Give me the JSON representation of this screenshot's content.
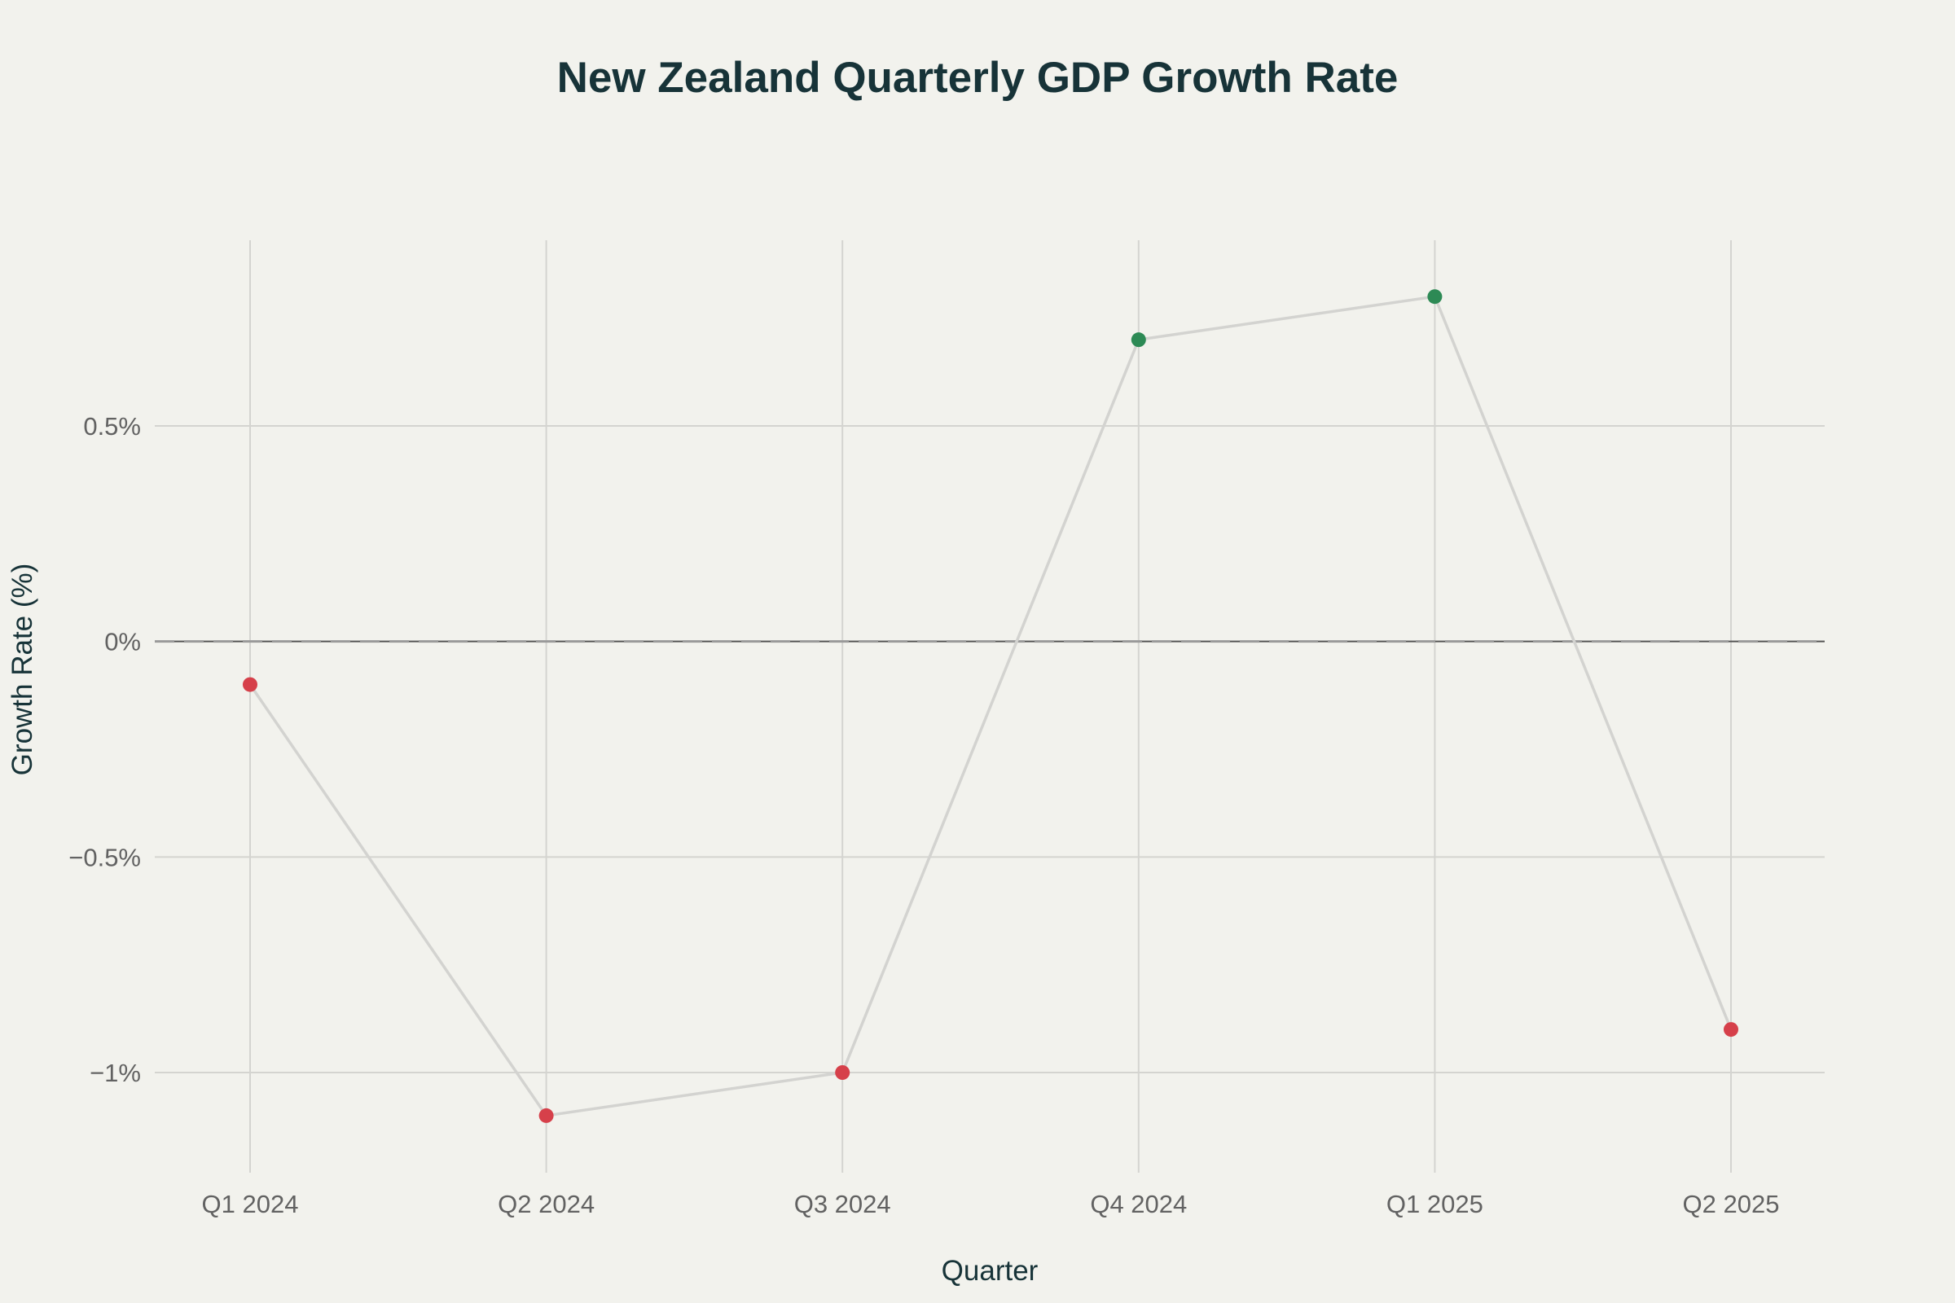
{
  "chart_data": {
    "type": "line",
    "title": "New Zealand Quarterly GDP Growth Rate",
    "xlabel": "Quarter",
    "ylabel": "Growth Rate (%)",
    "categories": [
      "Q1 2024",
      "Q2 2024",
      "Q3 2024",
      "Q4 2024",
      "Q1 2025",
      "Q2 2025"
    ],
    "series": [
      {
        "values": [
          -0.1,
          -1.1,
          -1.0,
          0.7,
          0.8,
          -0.9
        ]
      }
    ],
    "y_ticks": [
      {
        "value": 0.5,
        "label": "0.5%"
      },
      {
        "value": 0,
        "label": "0%"
      },
      {
        "value": -0.5,
        "label": "−0.5%"
      },
      {
        "value": -1,
        "label": "−1%"
      }
    ],
    "ylim": [
      -1.22,
      0.93
    ],
    "grid": true,
    "zero_reference_line": "dashed",
    "colors": {
      "background": "#f2f2ed",
      "title": "#173338",
      "axis_title": "#173338",
      "tick_label": "#626262",
      "grid": "#d4d4d0",
      "line": "#d3d3d0",
      "zero_line": "#555555",
      "zero_dash": "#9a9a9a",
      "positive_point": "#2d8a55",
      "negative_point": "#d6404a"
    }
  }
}
